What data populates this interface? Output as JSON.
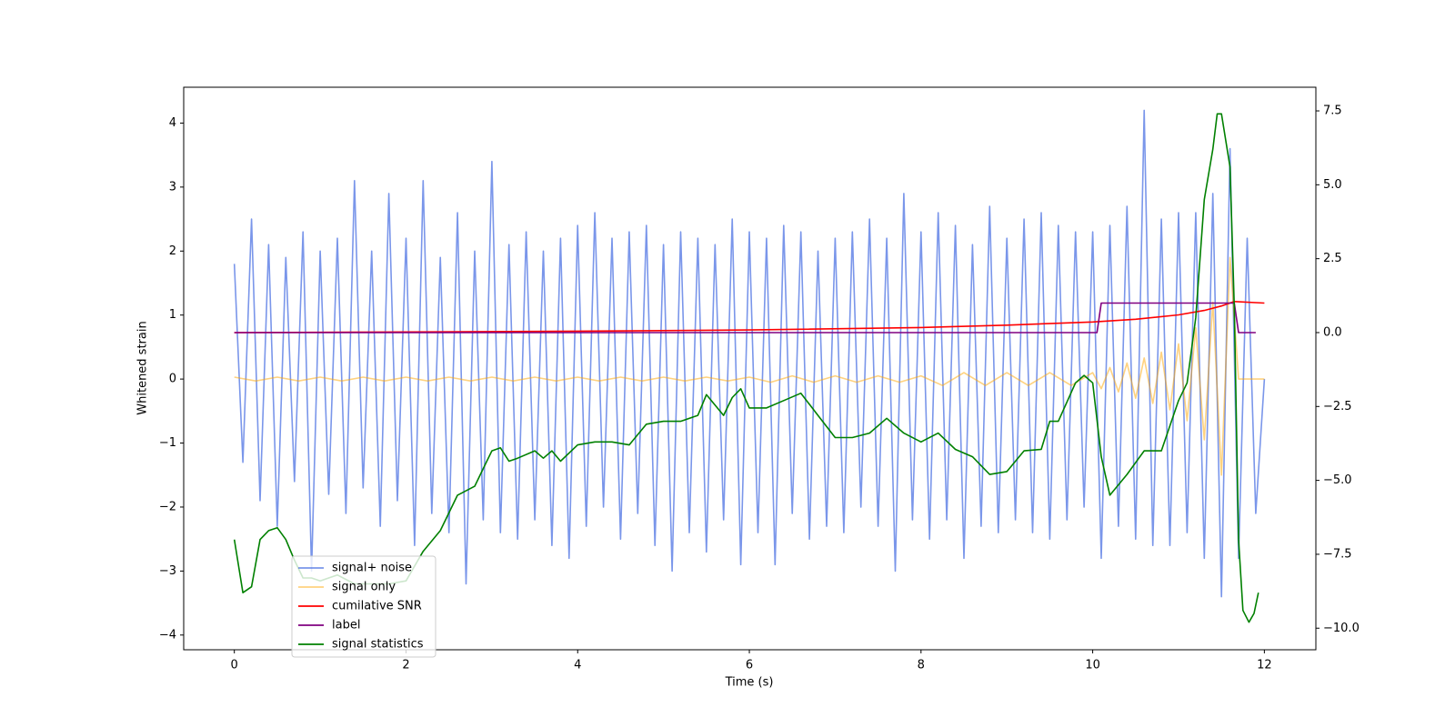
{
  "chart_data": {
    "type": "line",
    "xlabel": "Time (s)",
    "ylabel": "Whitened strain",
    "xlim": [
      -0.59,
      12.6
    ],
    "xticks": [
      0,
      2,
      4,
      6,
      8,
      10,
      12
    ],
    "ylim": [
      -4.23,
      4.56
    ],
    "yticks": [
      {
        "value": -4,
        "label": "−4"
      },
      {
        "value": -3,
        "label": "−3"
      },
      {
        "value": -2,
        "label": "−2"
      },
      {
        "value": -1,
        "label": "−1"
      },
      0,
      1,
      2,
      3,
      4
    ],
    "y2lim": [
      -10.73,
      8.3
    ],
    "y2ticks": [
      {
        "value": -10,
        "label": "−10.0"
      },
      {
        "value": -7.5,
        "label": "−7.5"
      },
      {
        "value": -5,
        "label": "−5.0"
      },
      {
        "value": -2.5,
        "label": "−2.5"
      },
      {
        "value": 0,
        "label": "0.0"
      },
      2.5,
      {
        "value": 5,
        "label": "5.0"
      },
      7.5
    ],
    "legend": "lower left",
    "series": [
      {
        "name": "signal+ noise",
        "color": "#4169e1",
        "alpha": 0.7,
        "x": [
          0,
          0.1,
          0.2,
          0.3,
          0.4,
          0.5,
          0.6,
          0.7,
          0.8,
          0.9,
          1,
          1.1,
          1.2,
          1.3,
          1.4,
          1.5,
          1.6,
          1.7,
          1.8,
          1.9,
          2,
          2.1,
          2.2,
          2.3,
          2.4,
          2.5,
          2.6,
          2.7,
          2.8,
          2.9,
          3,
          3.1,
          3.2,
          3.3,
          3.4,
          3.5,
          3.6,
          3.7,
          3.8,
          3.9,
          4,
          4.1,
          4.2,
          4.3,
          4.4,
          4.5,
          4.6,
          4.7,
          4.8,
          4.9,
          5,
          5.1,
          5.2,
          5.3,
          5.4,
          5.5,
          5.6,
          5.7,
          5.8,
          5.9,
          6,
          6.1,
          6.2,
          6.3,
          6.4,
          6.5,
          6.6,
          6.7,
          6.8,
          6.9,
          7,
          7.1,
          7.2,
          7.3,
          7.4,
          7.5,
          7.6,
          7.7,
          7.8,
          7.9,
          8,
          8.1,
          8.2,
          8.3,
          8.4,
          8.5,
          8.6,
          8.7,
          8.8,
          8.9,
          9,
          9.1,
          9.2,
          9.3,
          9.4,
          9.5,
          9.6,
          9.7,
          9.8,
          9.9,
          10,
          10.1,
          10.2,
          10.3,
          10.4,
          10.5,
          10.6,
          10.7,
          10.8,
          10.9,
          11,
          11.1,
          11.2,
          11.3,
          11.4,
          11.5,
          11.6,
          11.7,
          11.8,
          11.9,
          12
        ],
        "values": [
          1.8,
          -1.3,
          2.5,
          -1.9,
          2.1,
          -2.3,
          1.9,
          -1.6,
          2.3,
          -3.0,
          2.0,
          -1.8,
          2.2,
          -2.1,
          3.1,
          -1.7,
          2.0,
          -2.3,
          2.9,
          -1.9,
          2.2,
          -2.6,
          3.1,
          -2.1,
          1.9,
          -2.4,
          2.6,
          -3.2,
          2.0,
          -2.2,
          3.4,
          -2.4,
          2.1,
          -2.5,
          2.3,
          -2.2,
          2.0,
          -2.6,
          2.2,
          -2.8,
          2.4,
          -2.3,
          2.6,
          -2.0,
          2.2,
          -2.5,
          2.3,
          -2.1,
          2.4,
          -2.6,
          2.1,
          -3.0,
          2.3,
          -2.4,
          2.2,
          -2.7,
          2.1,
          -2.2,
          2.5,
          -2.9,
          2.3,
          -2.4,
          2.2,
          -2.9,
          2.4,
          -2.1,
          2.3,
          -2.5,
          2.0,
          -2.3,
          2.2,
          -2.4,
          2.3,
          -2.0,
          2.5,
          -2.3,
          2.2,
          -3.0,
          2.9,
          -2.2,
          2.3,
          -2.5,
          2.6,
          -2.2,
          2.4,
          -2.8,
          2.1,
          -2.3,
          2.7,
          -2.4,
          2.2,
          -2.2,
          2.5,
          -2.4,
          2.6,
          -2.5,
          2.4,
          -2.2,
          2.3,
          -2.0,
          2.3,
          -2.8,
          2.4,
          -2.3,
          2.7,
          -2.5,
          4.2,
          -2.6,
          2.5,
          -2.6,
          2.6,
          -2.4,
          2.6,
          -2.8,
          2.9,
          -3.4,
          3.6,
          -2.8,
          2.2,
          -2.1,
          0
        ]
      },
      {
        "name": "signal only",
        "color": "#ffa500",
        "alpha": 0.5,
        "x": [
          0,
          0.25,
          0.5,
          0.75,
          1,
          1.25,
          1.5,
          1.75,
          2,
          2.25,
          2.5,
          2.75,
          3,
          3.25,
          3.5,
          3.75,
          4,
          4.25,
          4.5,
          4.75,
          5,
          5.25,
          5.5,
          5.75,
          6,
          6.25,
          6.5,
          6.75,
          7,
          7.25,
          7.5,
          7.75,
          8,
          8.25,
          8.5,
          8.75,
          9,
          9.25,
          9.5,
          9.75,
          10,
          10.1,
          10.2,
          10.3,
          10.4,
          10.5,
          10.6,
          10.7,
          10.8,
          10.9,
          11,
          11.1,
          11.2,
          11.3,
          11.4,
          11.5,
          11.6,
          11.7,
          12
        ],
        "values": [
          0.03,
          -0.03,
          0.03,
          -0.03,
          0.03,
          -0.03,
          0.03,
          -0.03,
          0.03,
          -0.03,
          0.03,
          -0.03,
          0.03,
          -0.03,
          0.03,
          -0.03,
          0.03,
          -0.03,
          0.03,
          -0.03,
          0.03,
          -0.03,
          0.03,
          -0.03,
          0.03,
          -0.05,
          0.05,
          -0.05,
          0.05,
          -0.05,
          0.05,
          -0.05,
          0.05,
          -0.1,
          0.1,
          -0.1,
          0.1,
          -0.1,
          0.1,
          -0.1,
          0.1,
          -0.15,
          0.18,
          -0.2,
          0.25,
          -0.3,
          0.33,
          -0.38,
          0.42,
          -0.48,
          0.55,
          -0.65,
          0.8,
          -0.95,
          1.2,
          -1.5,
          1.9,
          0,
          0
        ]
      },
      {
        "name": "cumilative SNR",
        "color": "#ff0000",
        "alpha": 1,
        "axis": "y2",
        "x": [
          0,
          2,
          4,
          6,
          8,
          9,
          10,
          10.5,
          11,
          11.3,
          11.5,
          11.65,
          12
        ],
        "values": [
          0,
          0.02,
          0.05,
          0.09,
          0.17,
          0.25,
          0.36,
          0.45,
          0.6,
          0.75,
          0.9,
          1.05,
          1.0
        ]
      },
      {
        "name": "label",
        "color": "#800080",
        "alpha": 1,
        "axis": "y2",
        "x": [
          0,
          10.05,
          10.1,
          11.65,
          11.7,
          11.9
        ],
        "values": [
          0,
          0,
          1,
          1,
          0,
          0
        ]
      },
      {
        "name": "signal statistics",
        "color": "#008000",
        "alpha": 1,
        "axis": "y2",
        "x": [
          0,
          0.1,
          0.2,
          0.3,
          0.4,
          0.5,
          0.6,
          0.7,
          0.8,
          0.9,
          1,
          1.2,
          1.4,
          1.6,
          1.8,
          2,
          2.2,
          2.4,
          2.6,
          2.8,
          2.9,
          3,
          3.1,
          3.2,
          3.3,
          3.5,
          3.6,
          3.7,
          3.8,
          4,
          4.2,
          4.4,
          4.6,
          4.8,
          5,
          5.2,
          5.4,
          5.5,
          5.7,
          5.8,
          5.9,
          6,
          6.2,
          6.4,
          6.6,
          6.8,
          7,
          7.2,
          7.4,
          7.6,
          7.8,
          8,
          8.2,
          8.4,
          8.6,
          8.8,
          9,
          9.2,
          9.4,
          9.5,
          9.6,
          9.8,
          9.9,
          10,
          10.1,
          10.2,
          10.4,
          10.6,
          10.8,
          11,
          11.1,
          11.2,
          11.3,
          11.4,
          11.45,
          11.5,
          11.6,
          11.65,
          11.7,
          11.75,
          11.82,
          11.88,
          11.93
        ],
        "values": [
          -7.0,
          -8.8,
          -8.6,
          -7.0,
          -6.7,
          -6.6,
          -7.0,
          -7.7,
          -8.3,
          -8.3,
          -8.4,
          -8.2,
          -8.5,
          -8.5,
          -8.5,
          -8.4,
          -7.4,
          -6.7,
          -5.5,
          -5.2,
          -4.6,
          -4.0,
          -3.9,
          -4.35,
          -4.25,
          -4.0,
          -4.25,
          -4.0,
          -4.35,
          -3.8,
          -3.7,
          -3.7,
          -3.8,
          -3.1,
          -3.0,
          -3.0,
          -2.8,
          -2.1,
          -2.8,
          -2.2,
          -1.9,
          -2.55,
          -2.55,
          -2.3,
          -2.05,
          -2.8,
          -3.55,
          -3.55,
          -3.4,
          -2.9,
          -3.4,
          -3.7,
          -3.4,
          -3.95,
          -4.2,
          -4.8,
          -4.7,
          -4.0,
          -3.95,
          -3.0,
          -3.0,
          -1.7,
          -1.45,
          -1.7,
          -4.2,
          -5.5,
          -4.8,
          -4.0,
          -4.0,
          -2.3,
          -1.7,
          0.5,
          4.5,
          6.2,
          7.4,
          7.4,
          5.6,
          0.85,
          -7.0,
          -9.4,
          -9.8,
          -9.5,
          -8.8
        ]
      }
    ]
  }
}
